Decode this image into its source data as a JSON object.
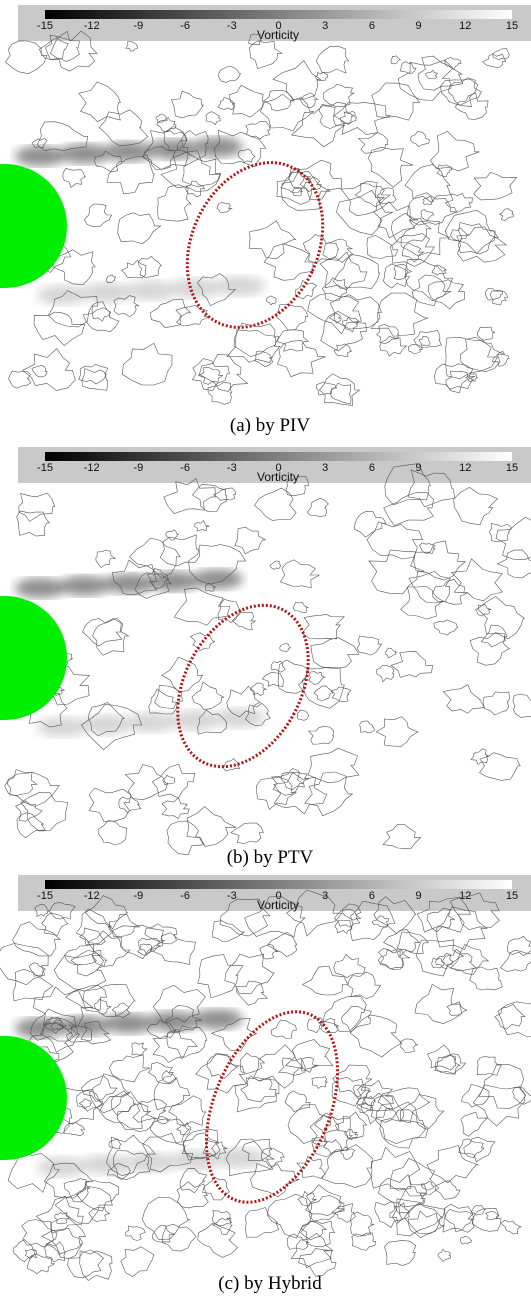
{
  "panels": [
    {
      "colorbar": {
        "label": "Vorticity",
        "ticks": [
          -15,
          -12,
          -9,
          -6,
          -3,
          0,
          3,
          6,
          9,
          12,
          15
        ]
      },
      "caption": "(a)  by PIV"
    },
    {
      "colorbar": {
        "label": "Vorticity",
        "ticks": [
          -15,
          -12,
          -9,
          -6,
          -3,
          0,
          3,
          6,
          9,
          12,
          15
        ]
      },
      "caption": "(b)  by PTV"
    },
    {
      "colorbar": {
        "label": "Vorticity",
        "ticks": [
          -15,
          -12,
          -9,
          -6,
          -3,
          0,
          3,
          6,
          9,
          12,
          15
        ]
      },
      "caption": "(c) by Hybrid"
    }
  ]
}
